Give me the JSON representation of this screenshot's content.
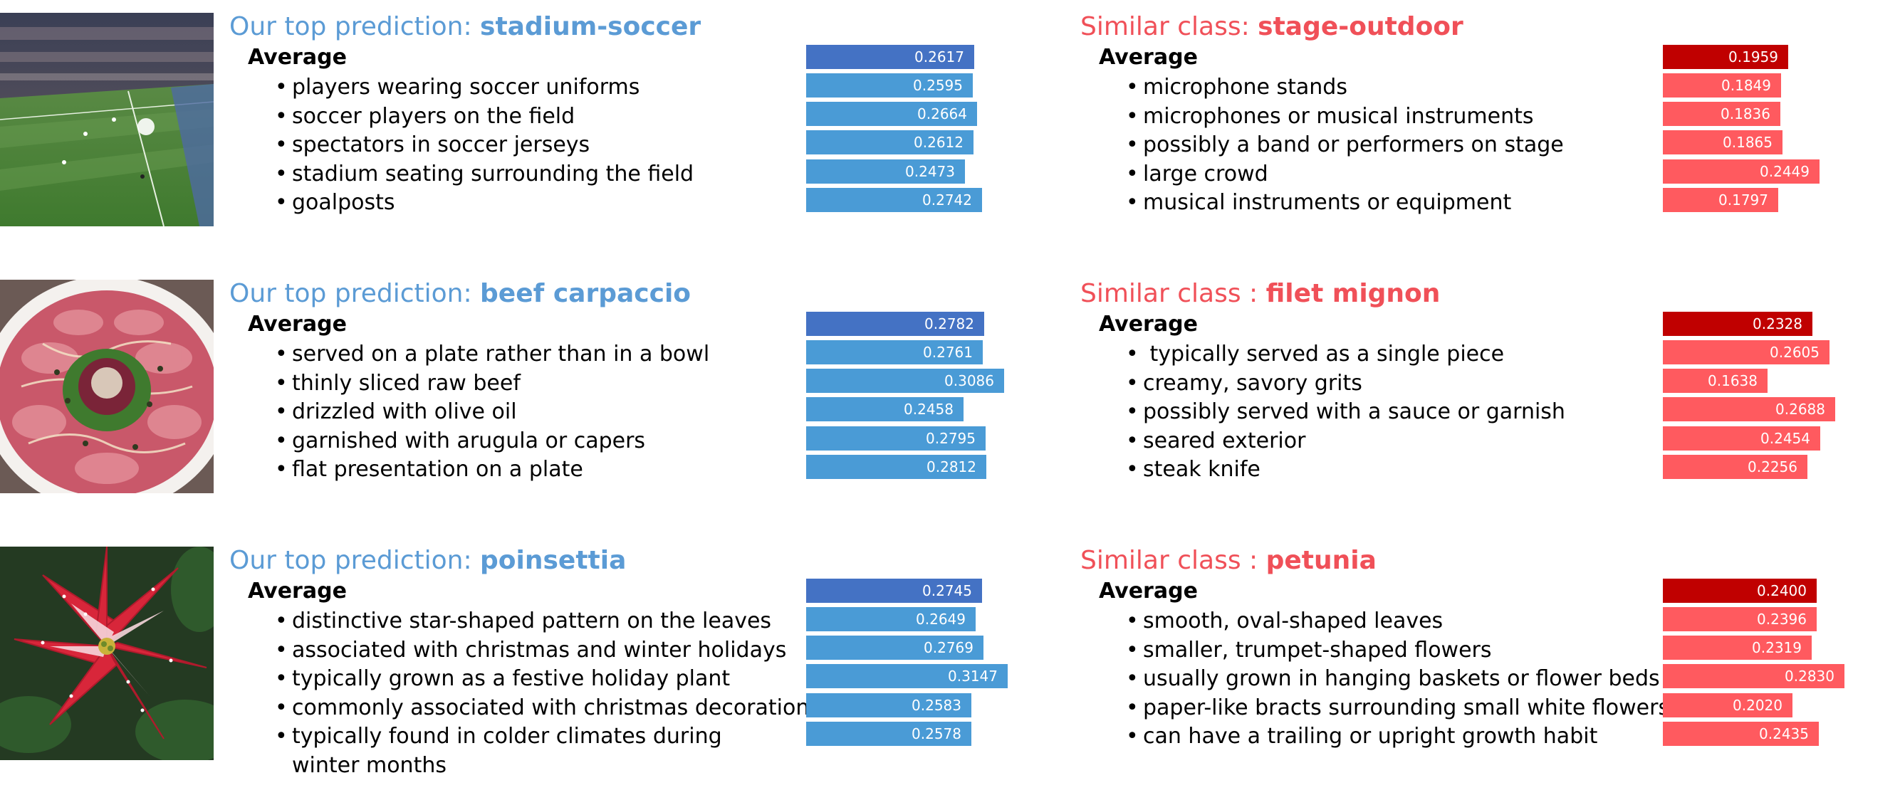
{
  "colors": {
    "blue_title": "#5b9bd5",
    "red_title": "#f05058",
    "blue_avg_bar": "#4472c4",
    "blue_bar": "#4a9bd6",
    "red_avg_bar": "#c00000",
    "red_bar": "#ff5a5f"
  },
  "rows": [
    {
      "image": "soccer-stadium-photo",
      "left": {
        "label": "Our top prediction: ",
        "class_name": "stadium-soccer",
        "average_label": "Average",
        "items": [
          "players wearing soccer uniforms",
          "soccer players on the field",
          "spectators in soccer jerseys",
          "stadium seating surrounding the field",
          "goalposts"
        ]
      },
      "right": {
        "label": "Similar class: ",
        "class_name": "stage-outdoor",
        "average_label": "Average",
        "items": [
          "microphone stands",
          "microphones or musical instruments",
          "possibly a band or performers on stage",
          "large crowd",
          "musical instruments or equipment"
        ]
      }
    },
    {
      "image": "beef-carpaccio-photo",
      "left": {
        "label": "Our top prediction: ",
        "class_name": "beef carpaccio",
        "average_label": "Average",
        "items": [
          "served on a plate rather than in a bowl",
          "thinly sliced raw beef",
          "drizzled with olive oil",
          "garnished with arugula or capers",
          "flat presentation on a plate"
        ]
      },
      "right": {
        "label": "Similar class : ",
        "class_name": "filet mignon",
        "average_label": "Average",
        "items": [
          " typically served as a single piece",
          "creamy, savory grits",
          "possibly served with a sauce or garnish",
          "seared exterior",
          "steak knife"
        ]
      }
    },
    {
      "image": "poinsettia-photo",
      "left": {
        "label": "Our top prediction: ",
        "class_name": "poinsettia",
        "average_label": "Average",
        "items": [
          "distinctive star-shaped pattern on the leaves",
          "associated with christmas and winter holidays",
          "typically grown as a festive holiday plant",
          "commonly associated with christmas decorations",
          "typically found in colder climates during winter months"
        ]
      },
      "right": {
        "label": "Similar class : ",
        "class_name": "petunia",
        "average_label": "Average",
        "items": [
          "smooth, oval-shaped leaves",
          "smaller, trumpet-shaped flowers",
          "usually grown in hanging baskets or flower beds",
          "paper-like bracts surrounding small white flowers",
          "can have a trailing or upright growth habit"
        ]
      }
    }
  ],
  "chart_data": [
    {
      "type": "bar",
      "orientation": "horizontal",
      "title": "Our top prediction: stadium-soccer",
      "categories": [
        "Average",
        "players wearing soccer uniforms",
        "soccer players on the field",
        "spectators in soccer jerseys",
        "stadium seating surrounding the field",
        "goalposts"
      ],
      "values": [
        0.2617,
        0.2595,
        0.2664,
        0.2612,
        0.2473,
        0.2742
      ]
    },
    {
      "type": "bar",
      "orientation": "horizontal",
      "title": "Similar class: stage-outdoor",
      "categories": [
        "Average",
        "microphone stands",
        "microphones or musical instruments",
        "possibly a band or performers on stage",
        "large crowd",
        "musical instruments or equipment"
      ],
      "values": [
        0.1959,
        0.1849,
        0.1836,
        0.1865,
        0.2449,
        0.1797
      ]
    },
    {
      "type": "bar",
      "orientation": "horizontal",
      "title": "Our top prediction: beef carpaccio",
      "categories": [
        "Average",
        "served on a plate rather than in a bowl",
        "thinly sliced raw beef",
        "drizzled with olive oil",
        "garnished with arugula or capers",
        "flat presentation on a plate"
      ],
      "values": [
        0.2782,
        0.2761,
        0.3086,
        0.2458,
        0.2795,
        0.2812
      ]
    },
    {
      "type": "bar",
      "orientation": "horizontal",
      "title": "Similar class : filet mignon",
      "categories": [
        "Average",
        " typically served as a single piece",
        "creamy, savory grits",
        "possibly served with a sauce or garnish",
        "seared exterior",
        "steak knife"
      ],
      "values": [
        0.2328,
        0.2605,
        0.1638,
        0.2688,
        0.2454,
        0.2256
      ]
    },
    {
      "type": "bar",
      "orientation": "horizontal",
      "title": "Our top prediction: poinsettia",
      "categories": [
        "Average",
        "distinctive star-shaped pattern on the leaves",
        "associated with christmas and winter holidays",
        "typically grown as a festive holiday plant",
        "commonly associated with christmas decorations",
        "typically found in colder climates during winter months"
      ],
      "values": [
        0.2745,
        0.2649,
        0.2769,
        0.3147,
        0.2583,
        0.2578
      ]
    },
    {
      "type": "bar",
      "orientation": "horizontal",
      "title": "Similar class : petunia",
      "categories": [
        "Average",
        "smooth, oval-shaped leaves",
        "smaller, trumpet-shaped flowers",
        "usually grown in hanging baskets or flower beds",
        "paper-like bracts surrounding small white flowers",
        "can have a trailing or upright growth habit"
      ],
      "values": [
        0.24,
        0.2396,
        0.2319,
        0.283,
        0.202,
        0.2435
      ]
    }
  ]
}
